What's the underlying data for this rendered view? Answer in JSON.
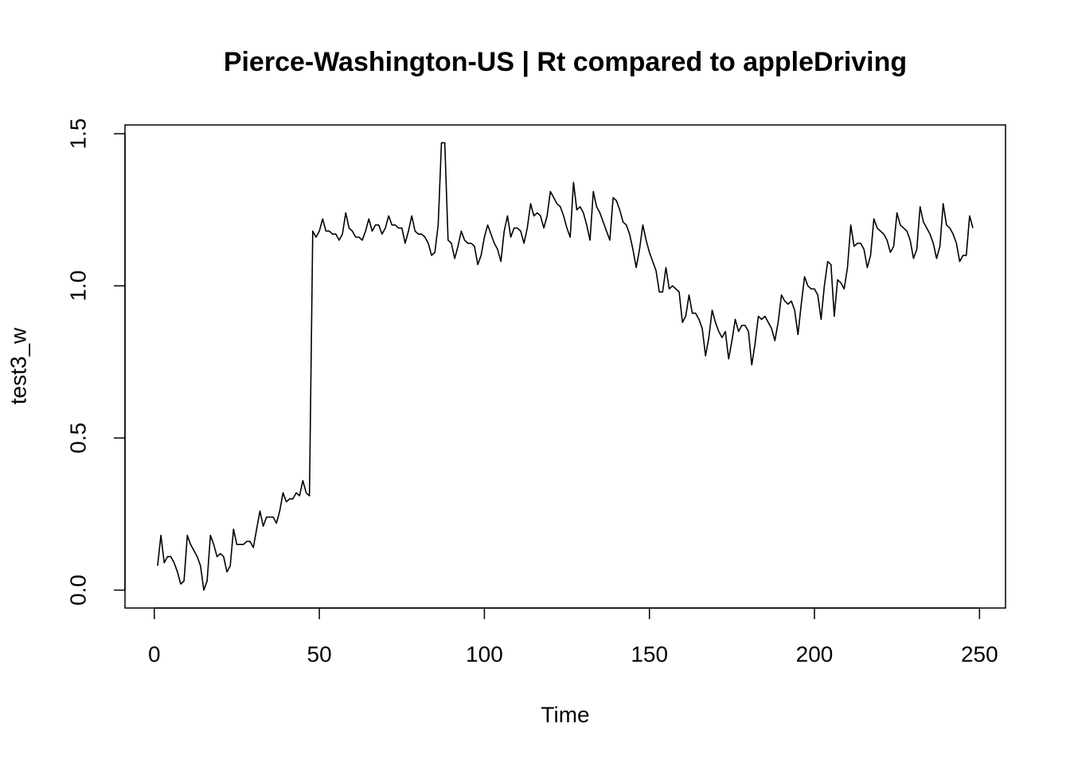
{
  "chart_data": {
    "type": "line",
    "title": "Pierce-Washington-US | Rt compared to appleDriving",
    "xlabel": "Time",
    "ylabel": "test3_w",
    "color": "#000000",
    "x": [
      1,
      2,
      3,
      4,
      5,
      6,
      7,
      8,
      9,
      10,
      11,
      12,
      13,
      14,
      15,
      16,
      17,
      18,
      19,
      20,
      21,
      22,
      23,
      24,
      25,
      26,
      27,
      28,
      29,
      30,
      31,
      32,
      33,
      34,
      35,
      36,
      37,
      38,
      39,
      40,
      41,
      42,
      43,
      44,
      45,
      46,
      47,
      48,
      49,
      50,
      51,
      52,
      53,
      54,
      55,
      56,
      57,
      58,
      59,
      60,
      61,
      62,
      63,
      64,
      65,
      66,
      67,
      68,
      69,
      70,
      71,
      72,
      73,
      74,
      75,
      76,
      77,
      78,
      79,
      80,
      81,
      82,
      83,
      84,
      85,
      86,
      87,
      88,
      89,
      90,
      91,
      92,
      93,
      94,
      95,
      96,
      97,
      98,
      99,
      100,
      101,
      102,
      103,
      104,
      105,
      106,
      107,
      108,
      109,
      110,
      111,
      112,
      113,
      114,
      115,
      116,
      117,
      118,
      119,
      120,
      121,
      122,
      123,
      124,
      125,
      126,
      127,
      128,
      129,
      130,
      131,
      132,
      133,
      134,
      135,
      136,
      137,
      138,
      139,
      140,
      141,
      142,
      143,
      144,
      145,
      146,
      147,
      148,
      149,
      150,
      151,
      152,
      153,
      154,
      155,
      156,
      157,
      158,
      159,
      160,
      161,
      162,
      163,
      164,
      165,
      166,
      167,
      168,
      169,
      170,
      171,
      172,
      173,
      174,
      175,
      176,
      177,
      178,
      179,
      180,
      181,
      182,
      183,
      184,
      185,
      186,
      187,
      188,
      189,
      190,
      191,
      192,
      193,
      194,
      195,
      196,
      197,
      198,
      199,
      200,
      201,
      202,
      203,
      204,
      205,
      206,
      207,
      208,
      209,
      210,
      211,
      212,
      213,
      214,
      215,
      216,
      217,
      218,
      219,
      220,
      221,
      222,
      223,
      224,
      225,
      226,
      227,
      228,
      229,
      230,
      231,
      232,
      233,
      234,
      235,
      236,
      237,
      238,
      239,
      240,
      241,
      242,
      243,
      244,
      245,
      246,
      247,
      248
    ],
    "values": [
      0.08,
      0.18,
      0.09,
      0.11,
      0.11,
      0.09,
      0.06,
      0.02,
      0.03,
      0.18,
      0.15,
      0.13,
      0.11,
      0.08,
      0.0,
      0.03,
      0.18,
      0.15,
      0.11,
      0.12,
      0.11,
      0.06,
      0.08,
      0.2,
      0.15,
      0.15,
      0.15,
      0.16,
      0.16,
      0.14,
      0.2,
      0.26,
      0.21,
      0.24,
      0.24,
      0.24,
      0.22,
      0.26,
      0.32,
      0.29,
      0.3,
      0.3,
      0.32,
      0.31,
      0.36,
      0.32,
      0.31,
      1.18,
      1.16,
      1.18,
      1.22,
      1.18,
      1.18,
      1.17,
      1.17,
      1.15,
      1.17,
      1.24,
      1.19,
      1.18,
      1.16,
      1.16,
      1.15,
      1.18,
      1.22,
      1.18,
      1.2,
      1.2,
      1.17,
      1.19,
      1.23,
      1.2,
      1.2,
      1.19,
      1.19,
      1.14,
      1.18,
      1.23,
      1.18,
      1.17,
      1.17,
      1.16,
      1.14,
      1.1,
      1.11,
      1.2,
      1.47,
      1.47,
      1.15,
      1.14,
      1.09,
      1.13,
      1.18,
      1.15,
      1.14,
      1.14,
      1.13,
      1.07,
      1.1,
      1.16,
      1.2,
      1.17,
      1.14,
      1.12,
      1.08,
      1.18,
      1.23,
      1.16,
      1.19,
      1.19,
      1.18,
      1.14,
      1.19,
      1.27,
      1.23,
      1.24,
      1.23,
      1.19,
      1.23,
      1.31,
      1.29,
      1.27,
      1.26,
      1.23,
      1.19,
      1.16,
      1.34,
      1.25,
      1.26,
      1.24,
      1.2,
      1.15,
      1.31,
      1.26,
      1.24,
      1.21,
      1.18,
      1.15,
      1.29,
      1.28,
      1.25,
      1.21,
      1.2,
      1.17,
      1.12,
      1.06,
      1.12,
      1.2,
      1.15,
      1.11,
      1.08,
      1.05,
      0.98,
      0.98,
      1.06,
      0.99,
      1.0,
      0.99,
      0.98,
      0.88,
      0.9,
      0.97,
      0.91,
      0.91,
      0.89,
      0.86,
      0.77,
      0.83,
      0.92,
      0.88,
      0.85,
      0.83,
      0.85,
      0.76,
      0.82,
      0.89,
      0.85,
      0.87,
      0.87,
      0.85,
      0.74,
      0.81,
      0.9,
      0.89,
      0.9,
      0.88,
      0.86,
      0.82,
      0.88,
      0.97,
      0.95,
      0.94,
      0.95,
      0.92,
      0.84,
      0.94,
      1.03,
      1.0,
      0.99,
      0.99,
      0.97,
      0.89,
      1.0,
      1.08,
      1.07,
      0.9,
      1.02,
      1.01,
      0.99,
      1.06,
      1.2,
      1.13,
      1.14,
      1.14,
      1.12,
      1.06,
      1.1,
      1.22,
      1.19,
      1.18,
      1.17,
      1.15,
      1.11,
      1.13,
      1.24,
      1.2,
      1.19,
      1.18,
      1.15,
      1.09,
      1.12,
      1.26,
      1.21,
      1.19,
      1.17,
      1.14,
      1.09,
      1.13,
      1.27,
      1.2,
      1.19,
      1.17,
      1.14,
      1.08,
      1.1,
      1.1,
      1.23,
      1.19
    ],
    "xlim": [
      -8.88,
      257.88
    ],
    "xticks": [
      0,
      50,
      100,
      150,
      200,
      250
    ],
    "ylim": [
      -0.0588,
      1.5288
    ],
    "yticks": [
      {
        "value": 0,
        "label": "0.0"
      },
      {
        "value": 0.5,
        "label": "0.5"
      },
      {
        "value": 1,
        "label": "1.0"
      },
      {
        "value": 1.5,
        "label": "1.5"
      }
    ]
  }
}
